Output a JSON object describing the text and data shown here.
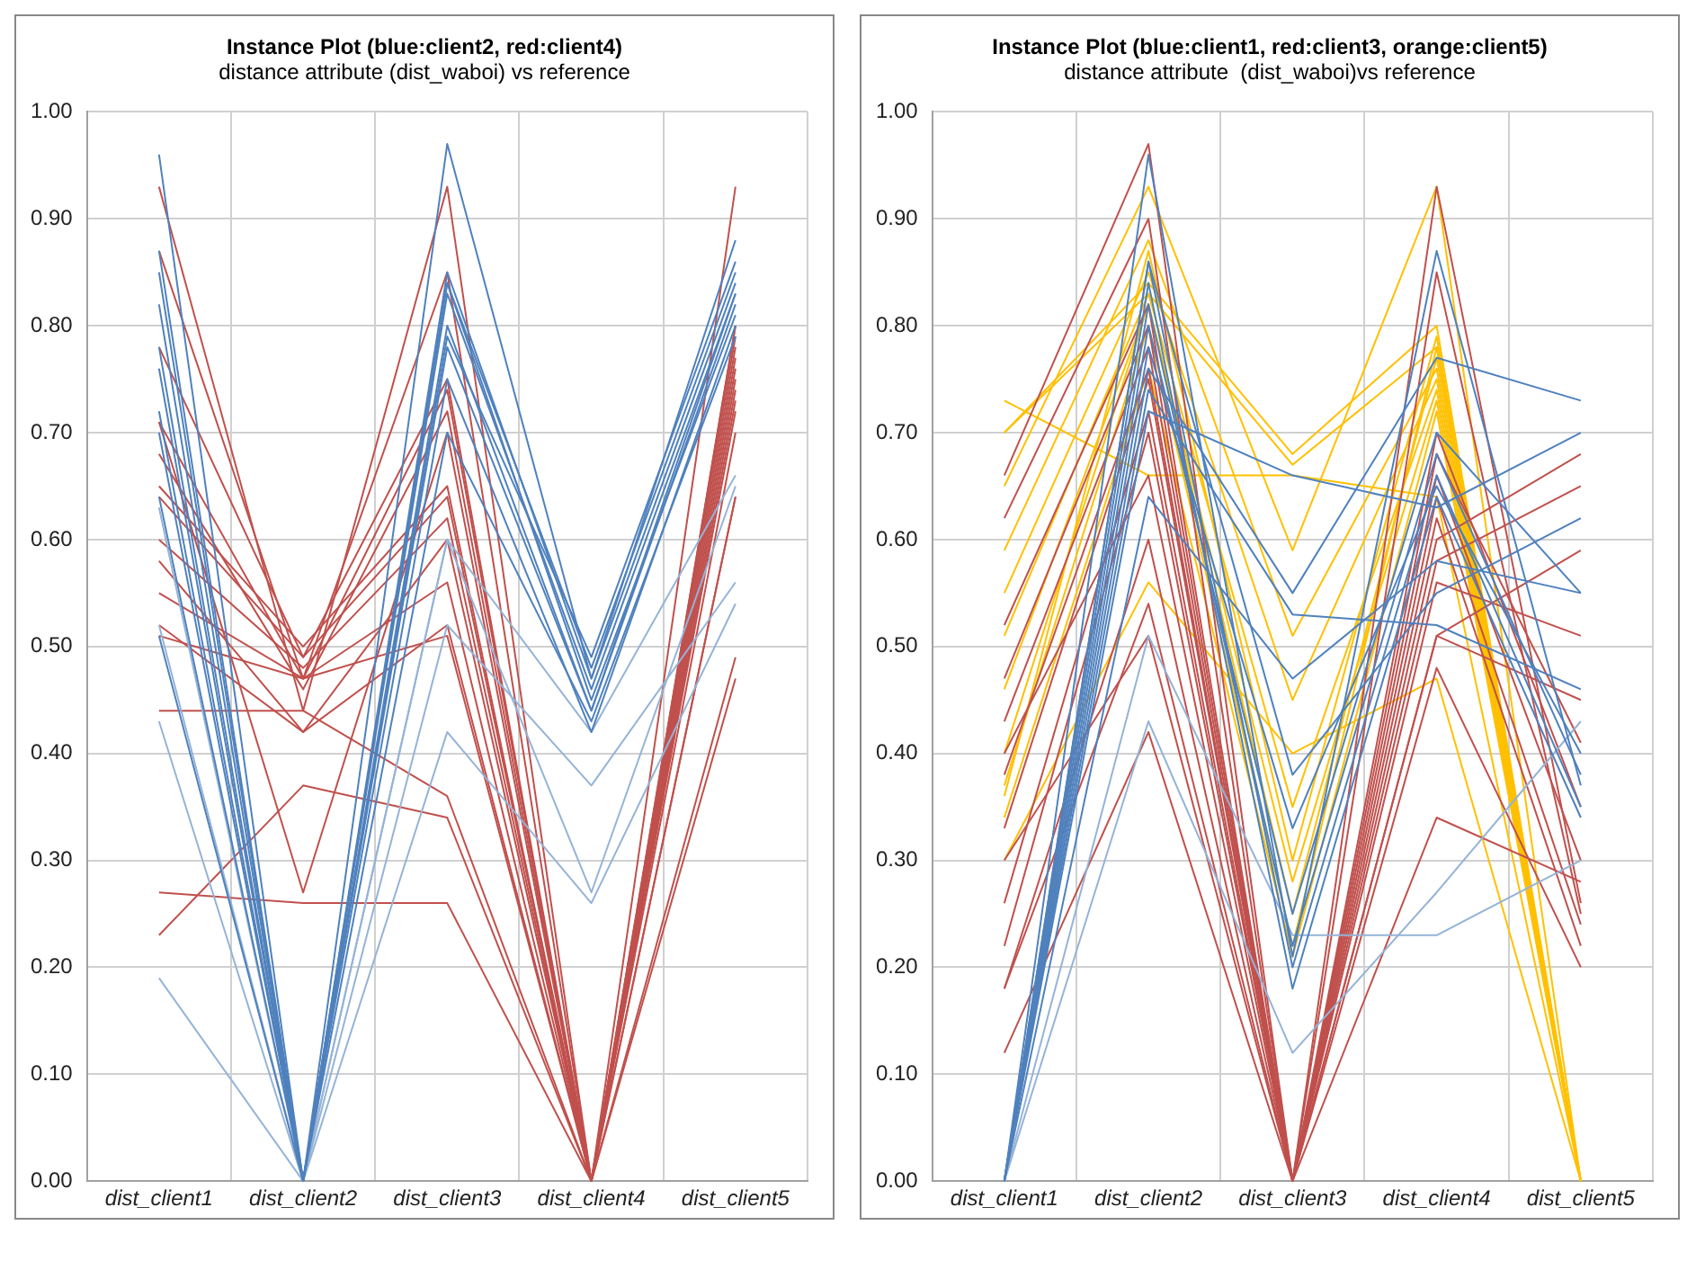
{
  "chart_data": [
    {
      "type": "line",
      "title": "Instance Plot (blue:client2, red:client4)",
      "subtitle": "distance attribute (dist_waboi) vs reference",
      "categories": [
        "dist_client1",
        "dist_client2",
        "dist_client3",
        "dist_client4",
        "dist_client5"
      ],
      "ylim": [
        0,
        1
      ],
      "yticks": [
        {
          "value": 0,
          "label": "0.00"
        },
        {
          "value": 0.1,
          "label": "0.10"
        },
        {
          "value": 0.2,
          "label": "0.20"
        },
        {
          "value": 0.3,
          "label": "0.30"
        },
        {
          "value": 0.4,
          "label": "0.40"
        },
        {
          "value": 0.5,
          "label": "0.50"
        },
        {
          "value": 0.6,
          "label": "0.60"
        },
        {
          "value": 0.7,
          "label": "0.70"
        },
        {
          "value": 0.8,
          "label": "0.80"
        },
        {
          "value": 0.9,
          "label": "0.90"
        },
        {
          "value": 1,
          "label": "1.00"
        }
      ],
      "grid": true,
      "marker": "none",
      "series": [
        {
          "color": "#4f81bd",
          "values": [
            0.96,
            0,
            0.85,
            0.47,
            0.84
          ]
        },
        {
          "color": "#4f81bd",
          "values": [
            0.87,
            0,
            0.84,
            0.48,
            0.85
          ]
        },
        {
          "color": "#4f81bd",
          "values": [
            0.85,
            0,
            0.83,
            0.46,
            0.83
          ]
        },
        {
          "color": "#4f81bd",
          "values": [
            0.82,
            0,
            0.8,
            0.44,
            0.82
          ]
        },
        {
          "color": "#4f81bd",
          "values": [
            0.78,
            0,
            0.79,
            0.49,
            0.86
          ]
        },
        {
          "color": "#4f81bd",
          "values": [
            0.76,
            0,
            0.84,
            0.45,
            0.81
          ]
        },
        {
          "color": "#4f81bd",
          "values": [
            0.72,
            0,
            0.97,
            0.47,
            0.88
          ]
        },
        {
          "color": "#4f81bd",
          "values": [
            0.7,
            0,
            0.75,
            0.42,
            0.8
          ]
        },
        {
          "color": "#4f81bd",
          "values": [
            0.64,
            0,
            0.7,
            0.43,
            0.79
          ]
        },
        {
          "color": "#4f81bd",
          "values": [
            0.51,
            0,
            0.78,
            0.44,
            0.83
          ]
        },
        {
          "color": "#95b3d7",
          "values": [
            0.63,
            0,
            0.6,
            0.42,
            0.66
          ]
        },
        {
          "color": "#95b3d7",
          "values": [
            0.52,
            0,
            0.52,
            0.37,
            0.56
          ]
        },
        {
          "color": "#95b3d7",
          "values": [
            0.43,
            0,
            0.42,
            0.26,
            0.54
          ]
        },
        {
          "color": "#95b3d7",
          "values": [
            0.19,
            0,
            0.6,
            0.27,
            0.65
          ]
        },
        {
          "color": "#c0504d",
          "values": [
            0.93,
            0.44,
            0.93,
            0,
            0.93
          ]
        },
        {
          "color": "#c0504d",
          "values": [
            0.87,
            0.47,
            0.85,
            0,
            0.8
          ]
        },
        {
          "color": "#c0504d",
          "values": [
            0.78,
            0.49,
            0.75,
            0,
            0.79
          ]
        },
        {
          "color": "#c0504d",
          "values": [
            0.71,
            0.47,
            0.74,
            0,
            0.77
          ]
        },
        {
          "color": "#c0504d",
          "values": [
            0.68,
            0.46,
            0.72,
            0,
            0.76
          ]
        },
        {
          "color": "#c0504d",
          "values": [
            0.65,
            0.5,
            0.65,
            0,
            0.78
          ]
        },
        {
          "color": "#c0504d",
          "values": [
            0.64,
            0.49,
            0.64,
            0,
            0.75
          ]
        },
        {
          "color": "#c0504d",
          "values": [
            0.6,
            0.48,
            0.62,
            0,
            0.74
          ]
        },
        {
          "color": "#c0504d",
          "values": [
            0.58,
            0.42,
            0.6,
            0,
            0.73
          ]
        },
        {
          "color": "#c0504d",
          "values": [
            0.55,
            0.47,
            0.56,
            0,
            0.72
          ]
        },
        {
          "color": "#c0504d",
          "values": [
            0.52,
            0.42,
            0.52,
            0,
            0.64
          ]
        },
        {
          "color": "#c0504d",
          "values": [
            0.51,
            0.47,
            0.51,
            0,
            0.49
          ]
        },
        {
          "color": "#c0504d",
          "values": [
            0.44,
            0.44,
            0.36,
            0,
            0.47
          ]
        },
        {
          "color": "#c0504d",
          "values": [
            0.23,
            0.37,
            0.34,
            0,
            0.64
          ]
        },
        {
          "color": "#c0504d",
          "values": [
            0.27,
            0.26,
            0.26,
            0,
            0.7
          ]
        },
        {
          "color": "#c0504d",
          "values": [
            0.71,
            0.27,
            0.7,
            0,
            0.8
          ]
        }
      ]
    },
    {
      "type": "line",
      "title": "Instance Plot (blue:client1, red:client3, orange:client5)",
      "subtitle": "distance attribute  (dist_waboi)vs reference",
      "categories": [
        "dist_client1",
        "dist_client2",
        "dist_client3",
        "dist_client4",
        "dist_client5"
      ],
      "ylim": [
        0,
        1
      ],
      "yticks": [
        {
          "value": 0,
          "label": "0.00"
        },
        {
          "value": 0.1,
          "label": "0.10"
        },
        {
          "value": 0.2,
          "label": "0.20"
        },
        {
          "value": 0.3,
          "label": "0.30"
        },
        {
          "value": 0.4,
          "label": "0.40"
        },
        {
          "value": 0.5,
          "label": "0.50"
        },
        {
          "value": 0.6,
          "label": "0.60"
        },
        {
          "value": 0.7,
          "label": "0.70"
        },
        {
          "value": 0.8,
          "label": "0.80"
        },
        {
          "value": 0.9,
          "label": "0.90"
        },
        {
          "value": 1,
          "label": "1.00"
        }
      ],
      "grid": true,
      "marker": "none",
      "series": [
        {
          "color": "#4f81bd",
          "values": [
            0,
            0.96,
            0.21,
            0.87,
            0.37
          ]
        },
        {
          "color": "#4f81bd",
          "values": [
            0,
            0.86,
            0.2,
            0.66,
            0.35
          ]
        },
        {
          "color": "#4f81bd",
          "values": [
            0,
            0.84,
            0.18,
            0.64,
            0.34
          ]
        },
        {
          "color": "#4f81bd",
          "values": [
            0,
            0.82,
            0.22,
            0.68,
            0.38
          ]
        },
        {
          "color": "#4f81bd",
          "values": [
            0,
            0.8,
            0.25,
            0.7,
            0.55
          ]
        },
        {
          "color": "#4f81bd",
          "values": [
            0,
            0.78,
            0.33,
            0.65,
            0.4
          ]
        },
        {
          "color": "#4f81bd",
          "values": [
            0,
            0.76,
            0.55,
            0.77,
            0.73
          ]
        },
        {
          "color": "#4f81bd",
          "values": [
            0,
            0.72,
            0.66,
            0.63,
            0.7
          ]
        },
        {
          "color": "#4f81bd",
          "values": [
            0,
            0.64,
            0.47,
            0.58,
            0.55
          ]
        },
        {
          "color": "#4f81bd",
          "values": [
            0,
            0.86,
            0.38,
            0.55,
            0.62
          ]
        },
        {
          "color": "#4f81bd",
          "values": [
            0,
            0.74,
            0.53,
            0.52,
            0.46
          ]
        },
        {
          "color": "#95b3d7",
          "values": [
            0,
            0.51,
            0.23,
            0.23,
            0.3
          ]
        },
        {
          "color": "#95b3d7",
          "values": [
            0,
            0.43,
            0.12,
            0.27,
            0.43
          ]
        },
        {
          "color": "#c0504d",
          "values": [
            0.66,
            0.97,
            0,
            0.93,
            0.26
          ]
        },
        {
          "color": "#c0504d",
          "values": [
            0.62,
            0.9,
            0,
            0.85,
            0.25
          ]
        },
        {
          "color": "#c0504d",
          "values": [
            0.52,
            0.82,
            0,
            0.7,
            0.35
          ]
        },
        {
          "color": "#c0504d",
          "values": [
            0.47,
            0.8,
            0,
            0.68,
            0.41
          ]
        },
        {
          "color": "#c0504d",
          "values": [
            0.43,
            0.78,
            0,
            0.66,
            0.3
          ]
        },
        {
          "color": "#c0504d",
          "values": [
            0.38,
            0.76,
            0,
            0.64,
            0.24
          ]
        },
        {
          "color": "#c0504d",
          "values": [
            0.33,
            0.75,
            0,
            0.62,
            0.22
          ]
        },
        {
          "color": "#c0504d",
          "values": [
            0.26,
            0.72,
            0,
            0.6,
            0.68
          ]
        },
        {
          "color": "#c0504d",
          "values": [
            0.22,
            0.7,
            0,
            0.58,
            0.65
          ]
        },
        {
          "color": "#c0504d",
          "values": [
            0.18,
            0.6,
            0,
            0.51,
            0.59
          ]
        },
        {
          "color": "#c0504d",
          "values": [
            0.18,
            0.54,
            0,
            0.48,
            0.2
          ]
        },
        {
          "color": "#c0504d",
          "values": [
            0.12,
            0.42,
            0,
            0.34,
            0.28
          ]
        },
        {
          "color": "#c0504d",
          "values": [
            0.3,
            0.51,
            0,
            0.56,
            0.51
          ]
        },
        {
          "color": "#c0504d",
          "values": [
            0.4,
            0.66,
            0,
            0.51,
            0.45
          ]
        },
        {
          "color": "#ffc000",
          "values": [
            0.73,
            0.66,
            0.66,
            0.64,
            0
          ]
        },
        {
          "color": "#ffc000",
          "values": [
            0.7,
            0.84,
            0.68,
            0.8,
            0
          ]
        },
        {
          "color": "#ffc000",
          "values": [
            0.7,
            0.83,
            0.67,
            0.78,
            0
          ]
        },
        {
          "color": "#ffc000",
          "values": [
            0.65,
            0.93,
            0.59,
            0.93,
            0
          ]
        },
        {
          "color": "#ffc000",
          "values": [
            0.59,
            0.88,
            0.51,
            0.76,
            0
          ]
        },
        {
          "color": "#ffc000",
          "values": [
            0.55,
            0.85,
            0.45,
            0.75,
            0
          ]
        },
        {
          "color": "#ffc000",
          "values": [
            0.51,
            0.83,
            0.35,
            0.74,
            0
          ]
        },
        {
          "color": "#ffc000",
          "values": [
            0.46,
            0.82,
            0.28,
            0.73,
            0
          ]
        },
        {
          "color": "#ffc000",
          "values": [
            0.4,
            0.82,
            0.25,
            0.77,
            0
          ]
        },
        {
          "color": "#ffc000",
          "values": [
            0.37,
            0.8,
            0.22,
            0.78,
            0
          ]
        },
        {
          "color": "#ffc000",
          "values": [
            0.34,
            0.76,
            0.21,
            0.72,
            0
          ]
        },
        {
          "color": "#ffc000",
          "values": [
            0.3,
            0.56,
            0.4,
            0.47,
            0
          ]
        },
        {
          "color": "#ffc000",
          "values": [
            0.36,
            0.87,
            0.3,
            0.79,
            0
          ]
        }
      ]
    }
  ]
}
